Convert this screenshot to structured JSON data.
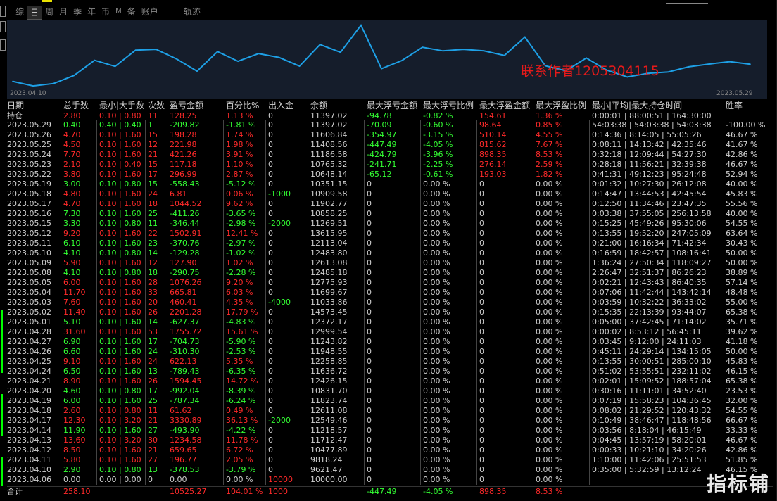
{
  "tabs": [
    {
      "label": "综",
      "active": false
    },
    {
      "label": "日",
      "active": true
    },
    {
      "label": "周",
      "active": false
    },
    {
      "label": "月",
      "active": false
    },
    {
      "label": "季",
      "active": false
    },
    {
      "label": "年",
      "active": false
    },
    {
      "label": "币",
      "active": false
    },
    {
      "label": "M",
      "active": false
    },
    {
      "label": "备",
      "active": false
    },
    {
      "label": "账户",
      "active": false
    },
    {
      "label": "轨迹",
      "active": false
    }
  ],
  "watermark": "联系作者1205304115",
  "logo": "指标铺",
  "chart_data": {
    "type": "line",
    "x_start": "2023.04.10",
    "x_end": "2023.05.29",
    "color": "#1ea0e6",
    "background": "#151d2b",
    "x": [
      "2023.04.06",
      "2023.04.10",
      "2023.04.11",
      "2023.04.12",
      "2023.04.13",
      "2023.04.14",
      "2023.04.17",
      "2023.04.18",
      "2023.04.19",
      "2023.04.20",
      "2023.04.21",
      "2023.04.24",
      "2023.04.25",
      "2023.04.26",
      "2023.04.27",
      "2023.04.28",
      "2023.05.01",
      "2023.05.02",
      "2023.05.03",
      "2023.05.04",
      "2023.05.05",
      "2023.05.08",
      "2023.05.09",
      "2023.05.10",
      "2023.05.11",
      "2023.05.12",
      "2023.05.15",
      "2023.05.16",
      "2023.05.17",
      "2023.05.18",
      "2023.05.19",
      "2023.05.22",
      "2023.05.23",
      "2023.05.24",
      "2023.05.25",
      "2023.05.26",
      "2023.05.29"
    ],
    "values": [
      10000.0,
      9621.47,
      9818.24,
      10477.89,
      11712.47,
      11218.57,
      12549.46,
      12611.08,
      11823.74,
      10831.7,
      12426.15,
      11636.72,
      12258.85,
      11948.55,
      11243.82,
      12999.54,
      12372.17,
      14573.45,
      11033.86,
      11699.67,
      12775.93,
      12485.18,
      12613.08,
      12483.8,
      12113.04,
      13615.95,
      11269.51,
      10858.25,
      11902.77,
      10909.58,
      10351.15,
      10648.14,
      10765.32,
      11186.58,
      11408.56,
      11606.84,
      11397.02
    ],
    "ylim": [
      9400,
      14800
    ]
  },
  "table": {
    "headers": [
      "日期",
      "总手数",
      "最小|大手数",
      "次数",
      "盈亏金额",
      "百分比%",
      "出入金",
      "余额",
      "最大浮亏金额",
      "最大浮亏比例",
      "最大浮盈金额",
      "最大浮盈比例",
      "最小|平均|最大持仓时间",
      "胜率"
    ],
    "hold": {
      "cells": [
        "持仓",
        "2.80",
        "0.10 | 0.80",
        "11",
        "128.25",
        "1.13 %",
        "0",
        "11397.02",
        "-94.78",
        "-0.82 %",
        "154.61",
        "1.36 %",
        "0:00:01 | 88:00:51 | 164:30:00",
        ""
      ],
      "colors": [
        "nu",
        "up",
        "up",
        "up",
        "up",
        "up",
        "nu",
        "nu",
        "dn",
        "dn",
        "up",
        "up",
        "nu",
        "nu"
      ]
    },
    "rows": [
      {
        "cells": [
          "2023.05.29",
          "0.40",
          "0.40 | 0.40",
          "1",
          "-209.82",
          "-1.81 %",
          "0",
          "11397.02",
          "-70.09",
          "-0.60 %",
          "98.64",
          "0.85 %",
          "54:03:38 | 54:03:38 | 54:03:38",
          "-100.00 %"
        ],
        "pl": "dn",
        "fl": "dn",
        "fp": "up"
      },
      {
        "cells": [
          "2023.05.26",
          "4.70",
          "0.10 | 1.60",
          "15",
          "198.28",
          "1.74 %",
          "0",
          "11606.84",
          "-354.97",
          "-3.15 %",
          "510.14",
          "4.55 %",
          "0:14:36 | 8:14:05 | 55:05:26",
          "46.67 %"
        ],
        "pl": "up",
        "fl": "dn",
        "fp": "up"
      },
      {
        "cells": [
          "2023.05.25",
          "4.50",
          "0.10 | 1.60",
          "12",
          "221.98",
          "1.98 %",
          "0",
          "11408.56",
          "-447.49",
          "-4.05 %",
          "815.62",
          "7.67 %",
          "0:08:11 | 14:13:42 | 42:35:46",
          "41.67 %"
        ],
        "pl": "up",
        "fl": "dn",
        "fp": "up"
      },
      {
        "cells": [
          "2023.05.24",
          "7.70",
          "0.10 | 1.60",
          "21",
          "421.26",
          "3.91 %",
          "0",
          "11186.58",
          "-424.79",
          "-3.96 %",
          "898.35",
          "8.53 %",
          "0:32:18 | 12:09:44 | 54:27:30",
          "42.86 %"
        ],
        "pl": "up",
        "fl": "dn",
        "fp": "up"
      },
      {
        "cells": [
          "2023.05.23",
          "2.10",
          "0.10 | 0.40",
          "15",
          "117.18",
          "1.10 %",
          "0",
          "10765.32",
          "-241.71",
          "-2.25 %",
          "276.14",
          "2.59 %",
          "0:28:18 | 11:56:21 | 32:39:38",
          "46.67 %"
        ],
        "pl": "up",
        "fl": "dn",
        "fp": "up"
      },
      {
        "cells": [
          "2023.05.22",
          "3.80",
          "0.10 | 1.60",
          "17",
          "296.99",
          "2.87 %",
          "0",
          "10648.14",
          "-65.12",
          "-0.61 %",
          "193.03",
          "1.82 %",
          "0:41:31 | 49:12:23 | 95:24:48",
          "52.94 %"
        ],
        "pl": "up",
        "fl": "dn",
        "fp": "up"
      },
      {
        "cells": [
          "2023.05.19",
          "3.00",
          "0.10 | 0.80",
          "15",
          "-558.43",
          "-5.12 %",
          "0",
          "10351.15",
          "0",
          "0.00 %",
          "0",
          "0.00 %",
          "0:01:32 | 10:27:30 | 26:12:08",
          "40.00 %"
        ],
        "pl": "dn",
        "fl": "nu",
        "fp": "nu"
      },
      {
        "cells": [
          "2023.05.18",
          "4.80",
          "0.10 | 1.60",
          "24",
          "6.81",
          "0.06 %",
          "-1000",
          "10909.58",
          "0",
          "0.00 %",
          "0",
          "0.00 %",
          "0:14:47 | 13:44:53 | 42:45:54",
          "45.83 %"
        ],
        "pl": "up",
        "fl": "nu",
        "fp": "nu",
        "io": "dn"
      },
      {
        "cells": [
          "2023.05.17",
          "4.70",
          "0.10 | 1.60",
          "18",
          "1044.52",
          "9.62 %",
          "0",
          "11902.77",
          "0",
          "0.00 %",
          "0",
          "0.00 %",
          "0:12:50 | 11:34:46 | 23:47:35",
          "55.56 %"
        ],
        "pl": "up",
        "fl": "nu",
        "fp": "nu"
      },
      {
        "cells": [
          "2023.05.16",
          "7.30",
          "0.10 | 1.60",
          "25",
          "-411.26",
          "-3.65 %",
          "0",
          "10858.25",
          "0",
          "0.00 %",
          "0",
          "0.00 %",
          "0:03:38 | 37:55:05 | 256:13:58",
          "40.00 %"
        ],
        "pl": "dn",
        "fl": "nu",
        "fp": "nu"
      },
      {
        "cells": [
          "2023.05.15",
          "3.30",
          "0.10 | 0.80",
          "11",
          "-346.44",
          "-2.98 %",
          "-2000",
          "11269.51",
          "0",
          "0.00 %",
          "0",
          "0.00 %",
          "0:15:25 | 45:49:26 | 95:30:06",
          "54.55 %"
        ],
        "pl": "dn",
        "fl": "nu",
        "fp": "nu",
        "io": "dn"
      },
      {
        "cells": [
          "2023.05.12",
          "9.20",
          "0.10 | 1.60",
          "22",
          "1502.91",
          "12.41 %",
          "0",
          "13615.95",
          "0",
          "0.00 %",
          "0",
          "0.00 %",
          "0:13:55 | 19:52:20 | 247:05:09",
          "63.64 %"
        ],
        "pl": "up",
        "fl": "nu",
        "fp": "nu"
      },
      {
        "cells": [
          "2023.05.11",
          "6.10",
          "0.10 | 1.60",
          "23",
          "-370.76",
          "-2.97 %",
          "0",
          "12113.04",
          "0",
          "0.00 %",
          "0",
          "0.00 %",
          "0:21:00 | 16:16:34 | 71:42:34",
          "30.43 %"
        ],
        "pl": "dn",
        "fl": "nu",
        "fp": "nu"
      },
      {
        "cells": [
          "2023.05.10",
          "4.10",
          "0.10 | 0.80",
          "14",
          "-129.28",
          "-1.02 %",
          "0",
          "12483.80",
          "0",
          "0.00 %",
          "0",
          "0.00 %",
          "0:16:59 | 18:42:57 | 108:16:41",
          "50.00 %"
        ],
        "pl": "dn",
        "fl": "nu",
        "fp": "nu"
      },
      {
        "cells": [
          "2023.05.09",
          "5.90",
          "0.10 | 1.60",
          "12",
          "127.90",
          "1.02 %",
          "0",
          "12613.08",
          "0",
          "0.00 %",
          "0",
          "0.00 %",
          "1:36:24 | 27:50:34 | 118:09:27",
          "50.00 %"
        ],
        "pl": "up",
        "fl": "nu",
        "fp": "nu"
      },
      {
        "cells": [
          "2023.05.08",
          "4.10",
          "0.10 | 0.80",
          "18",
          "-290.75",
          "-2.28 %",
          "0",
          "12485.18",
          "0",
          "0.00 %",
          "0",
          "0.00 %",
          "2:26:47 | 32:51:37 | 86:26:23",
          "38.89 %"
        ],
        "pl": "dn",
        "fl": "nu",
        "fp": "nu"
      },
      {
        "cells": [
          "2023.05.05",
          "6.00",
          "0.10 | 1.60",
          "28",
          "1076.26",
          "9.20 %",
          "0",
          "12775.93",
          "0",
          "0.00 %",
          "0",
          "0.00 %",
          "0:02:21 | 12:43:43 | 86:40:35",
          "57.14 %"
        ],
        "pl": "up",
        "fl": "nu",
        "fp": "nu"
      },
      {
        "cells": [
          "2023.05.04",
          "11.70",
          "0.10 | 1.60",
          "33",
          "665.81",
          "6.03 %",
          "0",
          "11699.67",
          "0",
          "0.00 %",
          "0",
          "0.00 %",
          "0:07:06 | 11:42:44 | 143:42:14",
          "48.48 %"
        ],
        "pl": "up",
        "fl": "nu",
        "fp": "nu"
      },
      {
        "cells": [
          "2023.05.03",
          "7.60",
          "0.10 | 1.60",
          "20",
          "460.41",
          "4.35 %",
          "-4000",
          "11033.86",
          "0",
          "0.00 %",
          "0",
          "0.00 %",
          "0:03:59 | 10:32:22 | 36:33:02",
          "55.00 %"
        ],
        "pl": "up",
        "fl": "nu",
        "fp": "nu",
        "io": "dn"
      },
      {
        "cells": [
          "2023.05.02",
          "11.40",
          "0.10 | 1.60",
          "26",
          "2201.28",
          "17.79 %",
          "0",
          "14573.45",
          "0",
          "0.00 %",
          "0",
          "0.00 %",
          "0:15:35 | 22:13:39 | 93:44:07",
          "65.38 %"
        ],
        "pl": "up",
        "fl": "nu",
        "fp": "nu"
      },
      {
        "cells": [
          "2023.05.01",
          "5.10",
          "0.10 | 1.60",
          "14",
          "-627.37",
          "-4.83 %",
          "0",
          "12372.17",
          "0",
          "0.00 %",
          "0",
          "0.00 %",
          "0:05:00 | 37:42:45 | 71:14:02",
          "35.71 %"
        ],
        "pl": "dn",
        "fl": "nu",
        "fp": "nu"
      },
      {
        "cells": [
          "2023.04.28",
          "31.60",
          "0.10 | 1.60",
          "53",
          "1755.72",
          "15.61 %",
          "0",
          "12999.54",
          "0",
          "0.00 %",
          "0",
          "0.00 %",
          "0:00:02 | 8:53:12 | 56:45:11",
          "39.62 %"
        ],
        "pl": "up",
        "fl": "nu",
        "fp": "nu"
      },
      {
        "cells": [
          "2023.04.27",
          "6.90",
          "0.10 | 1.60",
          "17",
          "-704.73",
          "-5.90 %",
          "0",
          "11243.82",
          "0",
          "0.00 %",
          "0",
          "0.00 %",
          "0:03:45 | 9:12:00 | 24:11:03",
          "41.18 %"
        ],
        "pl": "dn",
        "fl": "nu",
        "fp": "nu"
      },
      {
        "cells": [
          "2023.04.26",
          "6.60",
          "0.10 | 1.60",
          "24",
          "-310.30",
          "-2.53 %",
          "0",
          "11948.55",
          "0",
          "0.00 %",
          "0",
          "0.00 %",
          "0:45:11 | 24:29:14 | 134:15:05",
          "50.00 %"
        ],
        "pl": "dn",
        "fl": "nu",
        "fp": "nu"
      },
      {
        "cells": [
          "2023.04.25",
          "9.10",
          "0.10 | 1.60",
          "24",
          "622.13",
          "5.35 %",
          "0",
          "12258.85",
          "0",
          "0.00 %",
          "0",
          "0.00 %",
          "0:13:55 | 30:00:51 | 285:00:10",
          "45.83 %"
        ],
        "pl": "up",
        "fl": "nu",
        "fp": "nu"
      },
      {
        "cells": [
          "2023.04.24",
          "6.50",
          "0.10 | 1.60",
          "13",
          "-789.43",
          "-6.35 %",
          "0",
          "11636.72",
          "0",
          "0.00 %",
          "0",
          "0.00 %",
          "0:51:02 | 53:55:51 | 232:11:02",
          "46.15 %"
        ],
        "pl": "dn",
        "fl": "nu",
        "fp": "nu"
      },
      {
        "cells": [
          "2023.04.21",
          "8.90",
          "0.10 | 1.60",
          "26",
          "1594.45",
          "14.72 %",
          "0",
          "12426.15",
          "0",
          "0.00 %",
          "0",
          "0.00 %",
          "0:02:01 | 15:09:52 | 188:57:04",
          "65.38 %"
        ],
        "pl": "up",
        "fl": "nu",
        "fp": "nu"
      },
      {
        "cells": [
          "2023.04.20",
          "4.60",
          "0.10 | 0.80",
          "17",
          "-992.04",
          "-8.39 %",
          "0",
          "10831.70",
          "0",
          "0.00 %",
          "0",
          "0.00 %",
          "0:30:16 | 11:11:01 | 34:52:40",
          "23.53 %"
        ],
        "pl": "dn",
        "fl": "nu",
        "fp": "nu"
      },
      {
        "cells": [
          "2023.04.19",
          "6.00",
          "0.10 | 1.60",
          "25",
          "-787.34",
          "-6.24 %",
          "0",
          "11823.74",
          "0",
          "0.00 %",
          "0",
          "0.00 %",
          "0:07:19 | 15:58:23 | 104:36:45",
          "32.00 %"
        ],
        "pl": "dn",
        "fl": "nu",
        "fp": "nu"
      },
      {
        "cells": [
          "2023.04.18",
          "2.60",
          "0.10 | 0.80",
          "11",
          "61.62",
          "0.49 %",
          "0",
          "12611.08",
          "0",
          "0.00 %",
          "0",
          "0.00 %",
          "0:08:02 | 21:29:52 | 120:43:32",
          "54.55 %"
        ],
        "pl": "up",
        "fl": "nu",
        "fp": "nu"
      },
      {
        "cells": [
          "2023.04.17",
          "12.30",
          "0.10 | 3.20",
          "21",
          "3330.89",
          "36.13 %",
          "-2000",
          "12549.46",
          "0",
          "0.00 %",
          "0",
          "0.00 %",
          "0:10:49 | 38:46:47 | 118:48:56",
          "66.67 %"
        ],
        "pl": "up",
        "fl": "nu",
        "fp": "nu",
        "io": "dn"
      },
      {
        "cells": [
          "2023.04.14",
          "11.90",
          "0.10 | 1.60",
          "27",
          "-493.90",
          "-4.22 %",
          "0",
          "11218.57",
          "0",
          "0.00 %",
          "0",
          "0.00 %",
          "0:03:56 | 8:18:04 | 46:15:49",
          "33.33 %"
        ],
        "pl": "dn",
        "fl": "nu",
        "fp": "nu"
      },
      {
        "cells": [
          "2023.04.13",
          "13.60",
          "0.10 | 3.20",
          "30",
          "1234.58",
          "11.78 %",
          "0",
          "11712.47",
          "0",
          "0.00 %",
          "0",
          "0.00 %",
          "0:04:45 | 13:57:19 | 58:20:01",
          "46.67 %"
        ],
        "pl": "up",
        "fl": "nu",
        "fp": "nu"
      },
      {
        "cells": [
          "2023.04.12",
          "8.50",
          "0.10 | 1.60",
          "21",
          "659.65",
          "6.72 %",
          "0",
          "10477.89",
          "0",
          "0.00 %",
          "0",
          "0.00 %",
          "0:00:33 | 10:21:10 | 34:20:26",
          "42.86 %"
        ],
        "pl": "up",
        "fl": "nu",
        "fp": "nu"
      },
      {
        "cells": [
          "2023.04.11",
          "5.80",
          "0.10 | 1.60",
          "27",
          "196.77",
          "2.05 %",
          "0",
          "9818.24",
          "0",
          "0.00 %",
          "0",
          "0.00 %",
          "1:10:00 | 11:42:06 | 25:51:53",
          "51.85 %"
        ],
        "pl": "up",
        "fl": "nu",
        "fp": "nu"
      },
      {
        "cells": [
          "2023.04.10",
          "2.90",
          "0.10 | 0.80",
          "13",
          "-378.53",
          "-3.79 %",
          "0",
          "9621.47",
          "0",
          "0.00 %",
          "0",
          "0.00 %",
          "0:35:00 | 5:32:59 | 13:12:24",
          "46.15 %"
        ],
        "pl": "dn",
        "fl": "nu",
        "fp": "nu"
      },
      {
        "cells": [
          "2023.04.06",
          "0.00",
          "0.00 | 0.00",
          "0",
          "0.00",
          "0.00 %",
          "10000",
          "10000.00",
          "0",
          "0.00 %",
          "0",
          "0.00 %",
          "",
          ""
        ],
        "pl": "nu",
        "fl": "nu",
        "fp": "nu",
        "io": "up"
      }
    ],
    "total": {
      "cells": [
        "合计",
        "258.10",
        "",
        "",
        "10525.27",
        "104.01 %",
        "1000",
        "",
        "-447.49",
        "-4.05 %",
        "898.35",
        "8.53 %",
        "",
        ""
      ],
      "colors": [
        "nu",
        "up",
        "nu",
        "nu",
        "up",
        "up",
        "up",
        "nu",
        "dn",
        "dn",
        "up",
        "up",
        "nu",
        "nu"
      ]
    }
  }
}
